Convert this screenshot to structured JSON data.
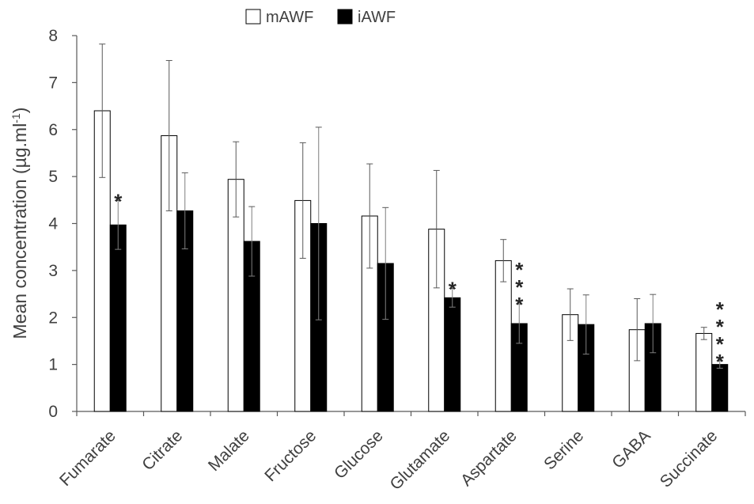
{
  "chart_data": {
    "type": "bar",
    "ylabel": "Mean concentration (µg.ml",
    "ylabel_superscript": "-1",
    "ylabel_suffix": ")",
    "ylim": [
      0,
      8
    ],
    "yticks": [
      0,
      1,
      2,
      3,
      4,
      5,
      6,
      7,
      8
    ],
    "grid": false,
    "legend_position": "top-center",
    "categories": [
      "Fumarate",
      "Citrate",
      "Malate",
      "Fructose",
      "Glucose",
      "Glutamate",
      "Aspartate",
      "Serine",
      "GABA",
      "Succinate"
    ],
    "series": [
      {
        "name": "mAWF",
        "fill": "#ffffff",
        "stroke": "#000000",
        "values": [
          6.4,
          5.87,
          4.94,
          4.49,
          4.16,
          3.88,
          3.21,
          2.06,
          1.74,
          1.66
        ],
        "errors": [
          1.42,
          1.6,
          0.8,
          1.23,
          1.11,
          1.25,
          0.45,
          0.55,
          0.66,
          0.13
        ]
      },
      {
        "name": "iAWF",
        "fill": "#000000",
        "stroke": "#000000",
        "values": [
          3.97,
          4.27,
          3.62,
          4.0,
          3.15,
          2.42,
          1.87,
          1.85,
          1.87,
          1.0
        ],
        "errors": [
          0.52,
          0.81,
          0.74,
          2.05,
          1.19,
          0.2,
          0.42,
          0.63,
          0.62,
          0.08
        ]
      }
    ],
    "annotations": [
      "*",
      "",
      "",
      "",
      "",
      "*",
      "***",
      "",
      "",
      "****"
    ],
    "colors": {
      "axis": "#595959",
      "text": "#404040",
      "errorbar": "#595959"
    }
  }
}
